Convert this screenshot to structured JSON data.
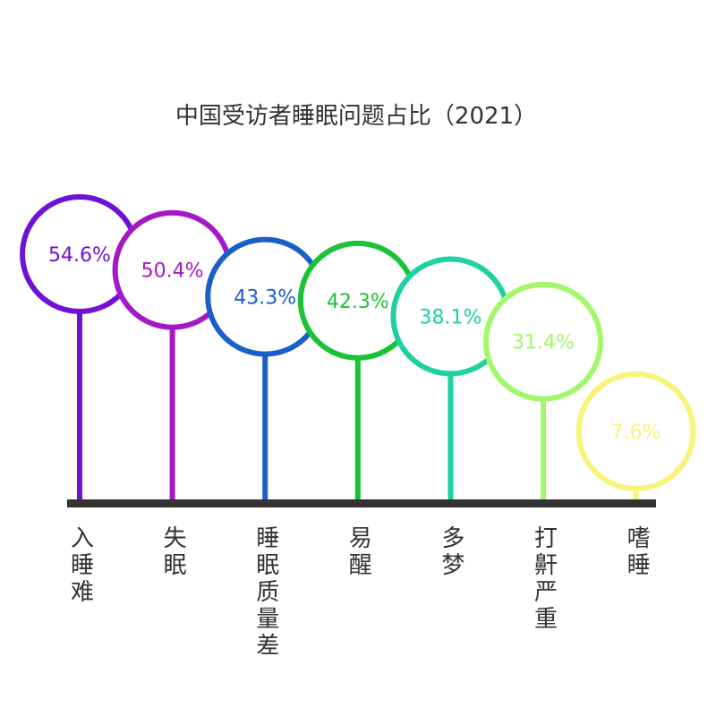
{
  "chart_data": {
    "type": "lollipop",
    "title": "中国受访者睡眠问题占比（2021）",
    "value_suffix": "%",
    "categories": [
      "入睡难",
      "失眠",
      "睡眠质量差",
      "易醒",
      "多梦",
      "打鼾严重",
      "嗜睡"
    ],
    "values": [
      54.6,
      50.4,
      43.3,
      42.3,
      38.1,
      31.4,
      7.6
    ],
    "value_labels": [
      "54.6%",
      "50.4%",
      "43.3%",
      "42.3%",
      "38.1%",
      "31.4%",
      "7.6%"
    ],
    "colors": [
      "#7012d6",
      "#a518c7",
      "#1a5fc9",
      "#19c335",
      "#1dd1a1",
      "#a3f76a",
      "#f7f47a"
    ],
    "category_text_color": "#333333",
    "baseline_color": "#333333",
    "legend": "none",
    "grid": false
  }
}
